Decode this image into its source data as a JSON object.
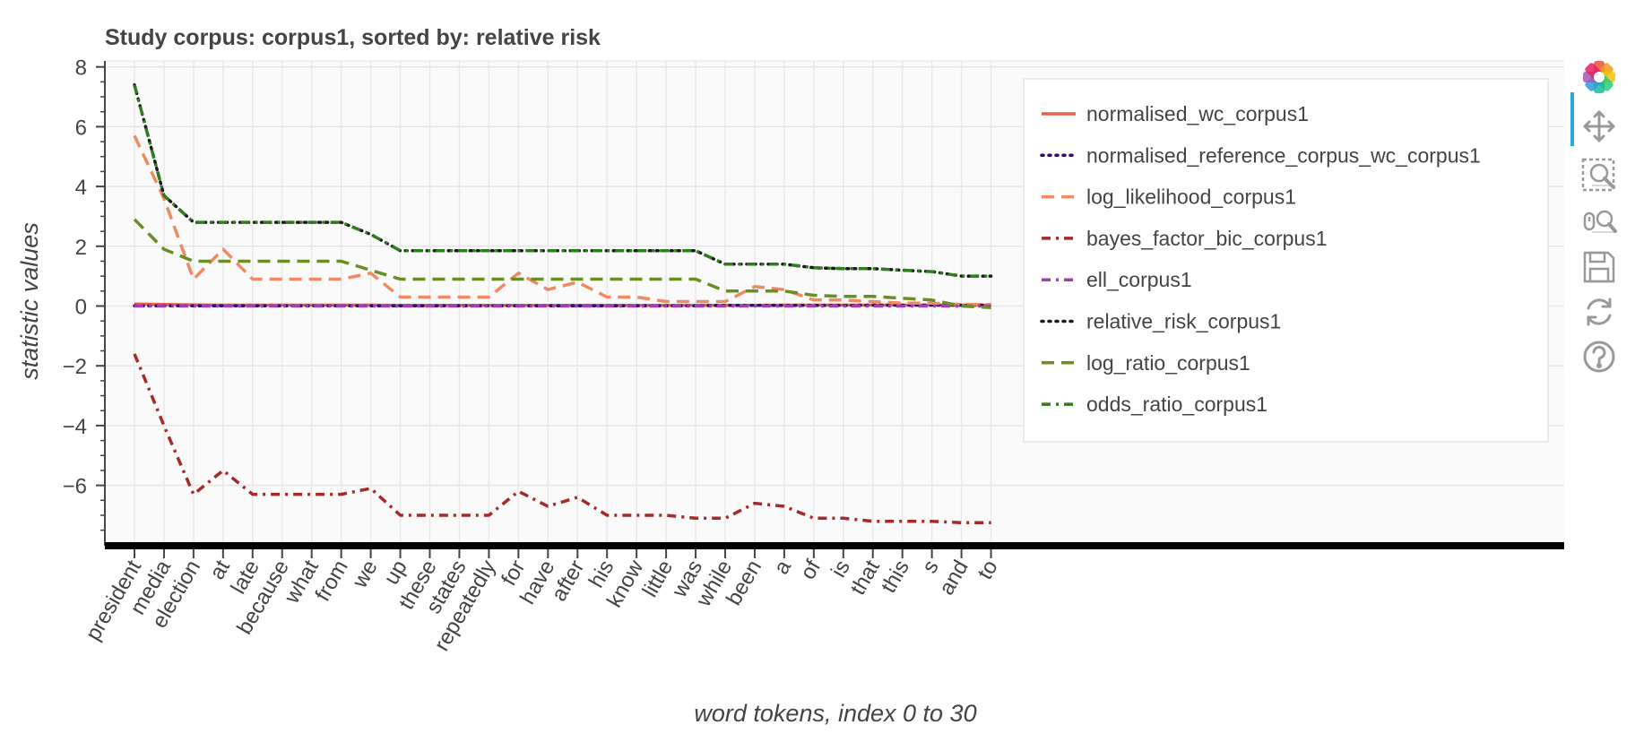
{
  "chart_data": {
    "type": "line",
    "title": "Study corpus: corpus1, sorted by: relative risk",
    "xlabel": "word tokens, index 0 to 30",
    "ylabel": "statistic values",
    "ylim": [
      -7.9,
      8.2
    ],
    "yticks": [
      8,
      6,
      4,
      2,
      0,
      -2,
      -4,
      -6
    ],
    "ytick_labels": [
      "8",
      "6",
      "4",
      "2",
      "0",
      "−2",
      "−4",
      "−6"
    ],
    "grid": true,
    "legend_position": "top-right",
    "categories": [
      "president",
      "media",
      "election",
      "at",
      "late",
      "because",
      "what",
      "from",
      "we",
      "up",
      "these",
      "states",
      "repeatedly",
      "for",
      "have",
      "after",
      "his",
      "know",
      "little",
      "was",
      "while",
      "been",
      "a",
      "of",
      "is",
      "that",
      "this",
      "s",
      "and",
      "to"
    ],
    "series": [
      {
        "name": "normalised_wc_corpus1",
        "color": "#e6604a",
        "dash": "solid",
        "values": [
          0.07,
          0.05,
          0.04,
          0.03,
          0.03,
          0.03,
          0.03,
          0.03,
          0.03,
          0.02,
          0.02,
          0.02,
          0.02,
          0.02,
          0.02,
          0.02,
          0.02,
          0.02,
          0.02,
          0.02,
          0.02,
          0.02,
          0.03,
          0.03,
          0.03,
          0.03,
          0.03,
          0.03,
          0.03,
          0.03
        ]
      },
      {
        "name": "normalised_reference_corpus_wc_corpus1",
        "color": "#2c0e77",
        "dash": "dotted",
        "values": [
          0.01,
          0.01,
          0.01,
          0.01,
          0.01,
          0.01,
          0.01,
          0.01,
          0.01,
          0.01,
          0.01,
          0.01,
          0.01,
          0.01,
          0.01,
          0.01,
          0.01,
          0.01,
          0.01,
          0.01,
          0.02,
          0.02,
          0.02,
          0.02,
          0.02,
          0.03,
          0.03,
          0.03,
          0.03,
          0.03
        ]
      },
      {
        "name": "log_likelihood_corpus1",
        "color": "#ef8a62",
        "dash": "dashed",
        "values": [
          5.7,
          3.6,
          0.9,
          1.9,
          0.9,
          0.9,
          0.9,
          0.9,
          1.1,
          0.3,
          0.3,
          0.3,
          0.3,
          1.1,
          0.55,
          0.8,
          0.3,
          0.3,
          0.15,
          0.15,
          0.15,
          0.65,
          0.55,
          0.2,
          0.2,
          0.15,
          0.1,
          0.1,
          0.05,
          0.05
        ]
      },
      {
        "name": "bayes_factor_bic_corpus1",
        "color": "#a52a2a",
        "dash": "dashdot",
        "values": [
          -1.6,
          -4.0,
          -6.3,
          -5.5,
          -6.3,
          -6.3,
          -6.3,
          -6.3,
          -6.1,
          -7.0,
          -7.0,
          -7.0,
          -7.0,
          -6.2,
          -6.7,
          -6.4,
          -7.0,
          -7.0,
          -7.0,
          -7.1,
          -7.1,
          -6.6,
          -6.7,
          -7.1,
          -7.1,
          -7.2,
          -7.2,
          -7.2,
          -7.25,
          -7.25
        ]
      },
      {
        "name": "ell_corpus1",
        "color": "#9f3fb2",
        "dash": "dashdot",
        "values": [
          0.0,
          0.0,
          0.0,
          0.0,
          0.0,
          0.0,
          0.0,
          0.0,
          0.0,
          0.0,
          0.0,
          0.0,
          0.0,
          0.0,
          0.0,
          0.0,
          0.0,
          0.0,
          0.0,
          0.0,
          0.0,
          0.0,
          0.0,
          0.0,
          0.0,
          0.0,
          0.0,
          0.0,
          0.0,
          0.0
        ]
      },
      {
        "name": "relative_risk_corpus1",
        "color": "#1b1b1b",
        "dash": "dotted",
        "values": [
          7.4,
          3.7,
          2.8,
          2.8,
          2.8,
          2.8,
          2.8,
          2.8,
          2.4,
          1.85,
          1.85,
          1.85,
          1.85,
          1.85,
          1.85,
          1.85,
          1.85,
          1.85,
          1.85,
          1.85,
          1.4,
          1.4,
          1.4,
          1.28,
          1.25,
          1.25,
          1.2,
          1.15,
          1.0,
          1.0
        ]
      },
      {
        "name": "log_ratio_corpus1",
        "color": "#6b8e23",
        "dash": "dashed",
        "values": [
          2.9,
          1.9,
          1.5,
          1.5,
          1.5,
          1.5,
          1.5,
          1.5,
          1.2,
          0.9,
          0.9,
          0.9,
          0.9,
          0.9,
          0.9,
          0.9,
          0.9,
          0.9,
          0.9,
          0.9,
          0.5,
          0.5,
          0.5,
          0.36,
          0.32,
          0.32,
          0.26,
          0.2,
          0.0,
          -0.05
        ]
      },
      {
        "name": "odds_ratio_corpus1",
        "color": "#2e7d1e",
        "dash": "dashdot",
        "values": [
          7.4,
          3.7,
          2.8,
          2.8,
          2.8,
          2.8,
          2.8,
          2.8,
          2.4,
          1.85,
          1.85,
          1.85,
          1.85,
          1.85,
          1.85,
          1.85,
          1.85,
          1.85,
          1.85,
          1.85,
          1.4,
          1.4,
          1.4,
          1.28,
          1.25,
          1.25,
          1.2,
          1.15,
          1.0,
          1.0
        ]
      }
    ]
  },
  "toolbar": {
    "logo_icon": "bokeh-logo-icon",
    "tools": [
      {
        "name": "pan-tool-icon",
        "active": true
      },
      {
        "name": "box-zoom-tool-icon",
        "active": false
      },
      {
        "name": "wheel-zoom-tool-icon",
        "active": false
      },
      {
        "name": "save-tool-icon",
        "active": false
      },
      {
        "name": "reset-tool-icon",
        "active": false
      },
      {
        "name": "help-tool-icon",
        "active": false
      }
    ],
    "icon_color": "#999999",
    "active_color": "#26aae1"
  }
}
